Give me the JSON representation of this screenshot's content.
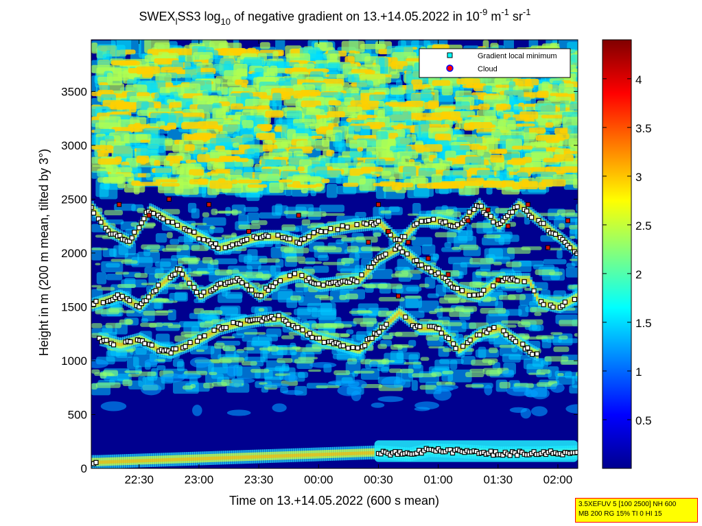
{
  "chart_data": {
    "type": "heatmap",
    "title": {
      "prefix": "SWEX",
      "sub1": "l",
      "mid": "SS3 log",
      "sub2": "10",
      "mid2": " of negative gradient on 13.+14.05.2022 in 10",
      "sup1": "-9",
      "mid3": " m",
      "sup2": "-1",
      "mid4": " sr",
      "sup3": "-1"
    },
    "xlabel": "Time on 13.+14.05.2022 (600 s mean)",
    "ylabel": "Height in m (200 m mean, tilted by 3°)",
    "x_ticks": [
      "22:30",
      "23:00",
      "23:30",
      "00:00",
      "00:30",
      "01:00",
      "01:30",
      "02:00"
    ],
    "x_range": [
      "22:06",
      "02:10"
    ],
    "y_ticks": [
      0,
      500,
      1000,
      1500,
      2000,
      2500,
      3000,
      3500
    ],
    "ylim": [
      0,
      3980
    ],
    "colorbar": {
      "ticks": [
        0.5,
        1,
        1.5,
        2,
        2.5,
        3,
        3.5,
        4
      ],
      "range": [
        0,
        4.4
      ],
      "colormap": "jet"
    },
    "legend": {
      "position": "top-right",
      "entries": [
        {
          "label": "Gradient local minimum",
          "marker": "square",
          "color": "#00ffff"
        },
        {
          "label": "Cloud",
          "marker": "circle",
          "color": "#ff0000",
          "edge": "#0000ff"
        }
      ]
    },
    "layers": [
      {
        "name": "near-surface",
        "points": [
          [
            "22:06",
            60
          ],
          [
            "22:09",
            60
          ],
          [
            "00:30",
            150
          ],
          [
            "00:45",
            130
          ],
          [
            "00:55",
            170
          ],
          [
            "01:10",
            160
          ],
          [
            "01:30",
            140
          ],
          [
            "01:50",
            140
          ],
          [
            "02:10",
            150
          ]
        ]
      },
      {
        "name": "band-1",
        "points": [
          [
            "22:10",
            1200
          ],
          [
            "22:20",
            1150
          ],
          [
            "22:30",
            1200
          ],
          [
            "22:40",
            1100
          ],
          [
            "22:45",
            1080
          ],
          [
            "22:55",
            1150
          ],
          [
            "23:00",
            1200
          ],
          [
            "23:10",
            1300
          ],
          [
            "23:20",
            1350
          ],
          [
            "23:30",
            1380
          ],
          [
            "23:40",
            1400
          ],
          [
            "23:50",
            1300
          ],
          [
            "00:00",
            1200
          ],
          [
            "00:20",
            1100
          ],
          [
            "00:40",
            1450
          ],
          [
            "00:50",
            1300
          ],
          [
            "01:00",
            1300
          ],
          [
            "01:10",
            1100
          ],
          [
            "01:20",
            1250
          ],
          [
            "01:30",
            1300
          ],
          [
            "01:45",
            1100
          ],
          [
            "01:50",
            1050
          ]
        ]
      },
      {
        "name": "band-2",
        "points": [
          [
            "22:06",
            1520
          ],
          [
            "22:20",
            1600
          ],
          [
            "22:30",
            1500
          ],
          [
            "22:40",
            1700
          ],
          [
            "22:50",
            1850
          ],
          [
            "23:00",
            1600
          ],
          [
            "23:10",
            1700
          ],
          [
            "23:20",
            1750
          ],
          [
            "23:30",
            1600
          ],
          [
            "23:40",
            1750
          ],
          [
            "23:50",
            1800
          ],
          [
            "00:00",
            1700
          ],
          [
            "00:20",
            1750
          ],
          [
            "00:30",
            1950
          ],
          [
            "00:40",
            2050
          ],
          [
            "00:50",
            1900
          ],
          [
            "01:00",
            1800
          ],
          [
            "01:10",
            1650
          ],
          [
            "01:20",
            1600
          ],
          [
            "01:30",
            1750
          ],
          [
            "01:45",
            1750
          ],
          [
            "01:50",
            1550
          ],
          [
            "02:00",
            1500
          ],
          [
            "02:10",
            1600
          ]
        ]
      },
      {
        "name": "band-3",
        "points": [
          [
            "22:06",
            2420
          ],
          [
            "22:15",
            2200
          ],
          [
            "22:25",
            2100
          ],
          [
            "22:35",
            2400
          ],
          [
            "22:45",
            2300
          ],
          [
            "23:00",
            2150
          ],
          [
            "23:10",
            2050
          ],
          [
            "23:20",
            2100
          ],
          [
            "23:30",
            2150
          ],
          [
            "23:40",
            2150
          ],
          [
            "23:50",
            2100
          ],
          [
            "00:00",
            2200
          ],
          [
            "00:15",
            2250
          ],
          [
            "00:30",
            2280
          ],
          [
            "00:40",
            2100
          ],
          [
            "00:50",
            2300
          ],
          [
            "01:00",
            2300
          ],
          [
            "01:10",
            2250
          ],
          [
            "01:20",
            2450
          ],
          [
            "01:30",
            2250
          ],
          [
            "01:40",
            2450
          ],
          [
            "01:50",
            2300
          ],
          [
            "02:00",
            2150
          ],
          [
            "02:10",
            2000
          ]
        ]
      }
    ],
    "clouds": [
      [
        "22:20",
        2450
      ],
      [
        "22:35",
        2350
      ],
      [
        "22:45",
        2500
      ],
      [
        "23:05",
        2450
      ],
      [
        "23:25",
        2200
      ],
      [
        "23:50",
        2350
      ],
      [
        "00:30",
        2450
      ],
      [
        "00:35",
        2200
      ],
      [
        "00:45",
        2100
      ],
      [
        "00:55",
        1950
      ],
      [
        "01:05",
        1800
      ],
      [
        "01:15",
        2300
      ],
      [
        "01:25",
        2400
      ],
      [
        "01:35",
        2250
      ],
      [
        "01:45",
        2450
      ],
      [
        "01:55",
        2050
      ],
      [
        "02:05",
        2300
      ],
      [
        "01:30",
        1750
      ],
      [
        "00:25",
        2100
      ],
      [
        "00:40",
        1600
      ]
    ]
  },
  "settings_box": {
    "line1": "3.5XEFUV 5 [100 2500] NH 600",
    "line2": "MB 200 RG 15% TI 0 HI 15"
  },
  "colors": {
    "background": "#ffffff",
    "plot_background": "#00008f",
    "marker_edge": "#000000",
    "cloud": "#d01000",
    "settings_box_bg": "#ffff00",
    "settings_box_border": "#ff0000"
  }
}
